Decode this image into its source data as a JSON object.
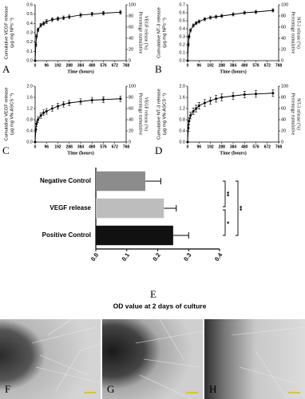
{
  "chart_data": [
    {
      "type": "line",
      "panel_label": "A",
      "x": [
        0,
        6,
        12,
        24,
        48,
        72,
        96,
        144,
        192,
        240,
        288,
        384,
        480,
        576,
        720
      ],
      "values": [
        0,
        0.17,
        0.26,
        0.33,
        0.38,
        0.4,
        0.42,
        0.44,
        0.45,
        0.46,
        0.47,
        0.49,
        0.5,
        0.51,
        0.52
      ],
      "errors": [
        0,
        0.02,
        0.02,
        0.02,
        0.02,
        0.02,
        0.02,
        0.02,
        0.02,
        0.02,
        0.02,
        0.02,
        0.02,
        0.02,
        0.02
      ],
      "xlim": [
        0,
        768
      ],
      "xticks": [
        0,
        96,
        192,
        288,
        384,
        480,
        576,
        672,
        768
      ],
      "xlabel": "Time (hours)",
      "ylim": [
        0,
        0.6
      ],
      "yticks": [
        {
          "value": 0,
          "label": "0.0"
        },
        {
          "value": 0.1,
          "label": "0.1"
        },
        {
          "value": 0.2,
          "label": "0.2"
        },
        {
          "value": 0.3,
          "label": "0.3"
        },
        {
          "value": 0.4,
          "label": "0.4"
        },
        {
          "value": 0.5,
          "label": "0.5"
        },
        {
          "value": 0.6,
          "label": "0.6"
        }
      ],
      "ylabel": [
        "Cumulative VEGF release",
        "(μg mg NPs⁻¹)"
      ],
      "y2lim": [
        0,
        100
      ],
      "y2ticks": [
        0,
        20,
        40,
        60,
        80,
        100
      ],
      "y2label": [
        "Percentage cumulative",
        "VEGF release (%)"
      ]
    },
    {
      "type": "line",
      "panel_label": "B",
      "x": [
        0,
        6,
        12,
        24,
        48,
        72,
        96,
        144,
        192,
        240,
        288,
        384,
        480,
        576,
        720
      ],
      "values": [
        0,
        0.2,
        0.3,
        0.38,
        0.44,
        0.47,
        0.49,
        0.52,
        0.54,
        0.55,
        0.56,
        0.58,
        0.6,
        0.61,
        0.63
      ],
      "errors": [
        0,
        0.02,
        0.02,
        0.02,
        0.02,
        0.02,
        0.02,
        0.02,
        0.02,
        0.02,
        0.02,
        0.02,
        0.02,
        0.02,
        0.02
      ],
      "xlim": [
        0,
        768
      ],
      "xticks": [
        0,
        96,
        192,
        288,
        384,
        480,
        576,
        672,
        768
      ],
      "xlabel": "Time (hours)",
      "ylim": [
        0,
        0.7
      ],
      "yticks": [
        {
          "value": 0,
          "label": "0.0"
        },
        {
          "value": 0.1,
          "label": "0.1"
        },
        {
          "value": 0.2,
          "label": "0.2"
        },
        {
          "value": 0.3,
          "label": "0.3"
        },
        {
          "value": 0.4,
          "label": "0.4"
        },
        {
          "value": 0.5,
          "label": "0.5"
        },
        {
          "value": 0.6,
          "label": "0.6"
        },
        {
          "value": 0.7,
          "label": "0.7"
        }
      ],
      "ylabel": [
        "Cumulative NT-3 release",
        "(μg mg NPs⁻¹)"
      ],
      "y2lim": [
        0,
        100
      ],
      "y2ticks": [
        0,
        20,
        40,
        60,
        80,
        100
      ],
      "y2label": [
        "Percentage cumulative",
        "NT-3 release (%)"
      ]
    },
    {
      "type": "line",
      "panel_label": "C",
      "x": [
        0,
        6,
        12,
        24,
        48,
        72,
        96,
        144,
        192,
        240,
        288,
        384,
        480,
        576,
        720
      ],
      "values": [
        0,
        0.45,
        0.65,
        0.8,
        0.95,
        1.05,
        1.1,
        1.2,
        1.28,
        1.35,
        1.4,
        1.45,
        1.5,
        1.52,
        1.55
      ],
      "errors": [
        0,
        0.1,
        0.1,
        0.1,
        0.1,
        0.1,
        0.1,
        0.1,
        0.1,
        0.1,
        0.1,
        0.1,
        0.1,
        0.1,
        0.1
      ],
      "xlim": [
        0,
        768
      ],
      "xticks": [
        0,
        96,
        192,
        288,
        384,
        480,
        576,
        672,
        768
      ],
      "xlabel": "Time (hours)",
      "ylim": [
        0,
        2
      ],
      "yticks": [
        {
          "value": 0,
          "label": "0.0"
        },
        {
          "value": 0.4,
          "label": "0.4"
        },
        {
          "value": 0.8,
          "label": "0.8"
        },
        {
          "value": 1.2,
          "label": "1.2"
        },
        {
          "value": 1.6,
          "label": "1.6"
        },
        {
          "value": 2,
          "label": "2.0"
        }
      ],
      "ylabel": [
        "Cumulative VEGF release",
        "(μg mg VN-ASCS⁻¹)"
      ],
      "y2lim": [
        0,
        100
      ],
      "y2ticks": [
        0,
        20,
        40,
        60,
        80,
        100
      ],
      "y2label": [
        "Percentage cumulative",
        "VEGF release (%)"
      ]
    },
    {
      "type": "line",
      "panel_label": "D",
      "x": [
        0,
        6,
        12,
        24,
        48,
        72,
        96,
        144,
        192,
        240,
        288,
        384,
        480,
        576,
        720
      ],
      "values": [
        0,
        0.5,
        0.75,
        0.95,
        1.1,
        1.2,
        1.3,
        1.4,
        1.48,
        1.55,
        1.6,
        1.65,
        1.7,
        1.72,
        1.75
      ],
      "errors": [
        0,
        0.12,
        0.12,
        0.12,
        0.12,
        0.12,
        0.12,
        0.12,
        0.12,
        0.12,
        0.12,
        0.12,
        0.12,
        0.12,
        0.12
      ],
      "xlim": [
        0,
        768
      ],
      "xticks": [
        0,
        96,
        192,
        288,
        384,
        480,
        576,
        672,
        768
      ],
      "xlabel": "Time (hours)",
      "ylim": [
        0,
        2
      ],
      "yticks": [
        {
          "value": 0,
          "label": "0.0"
        },
        {
          "value": 0.4,
          "label": "0.4"
        },
        {
          "value": 0.8,
          "label": "0.8"
        },
        {
          "value": 1.2,
          "label": "1.2"
        },
        {
          "value": 1.6,
          "label": "1.6"
        },
        {
          "value": 2,
          "label": "2.0"
        }
      ],
      "ylabel": [
        "Cumulative NT-3 release",
        "(μg mg VN-ASCS⁻¹)"
      ],
      "y2lim": [
        0,
        100
      ],
      "y2ticks": [
        0,
        20,
        40,
        60,
        80,
        100
      ],
      "y2label": [
        "Percentage cumulative",
        "NT-3 release (%)"
      ]
    },
    {
      "type": "hbar",
      "panel_label": "E",
      "categories": [
        "Negative Control",
        "VEGF release",
        "Positive Control"
      ],
      "values": [
        0.16,
        0.22,
        0.25
      ],
      "errors": [
        0.05,
        0.04,
        0.05
      ],
      "colors": [
        "#8c8c8c",
        "#bdbdbd",
        "#111111"
      ],
      "xlim": [
        0,
        0.4
      ],
      "xticks": [
        {
          "value": 0,
          "label": "0.0"
        },
        {
          "value": 0.1,
          "label": "0.1"
        },
        {
          "value": 0.2,
          "label": "0.2"
        },
        {
          "value": 0.3,
          "label": "0.3"
        },
        {
          "value": 0.4,
          "label": "0.4"
        }
      ],
      "xlabel": "OD value at 2 days of culture",
      "significance": [
        "**",
        "*",
        "**"
      ]
    }
  ],
  "micrographs": {
    "labels": [
      "F",
      "G",
      "H"
    ]
  }
}
